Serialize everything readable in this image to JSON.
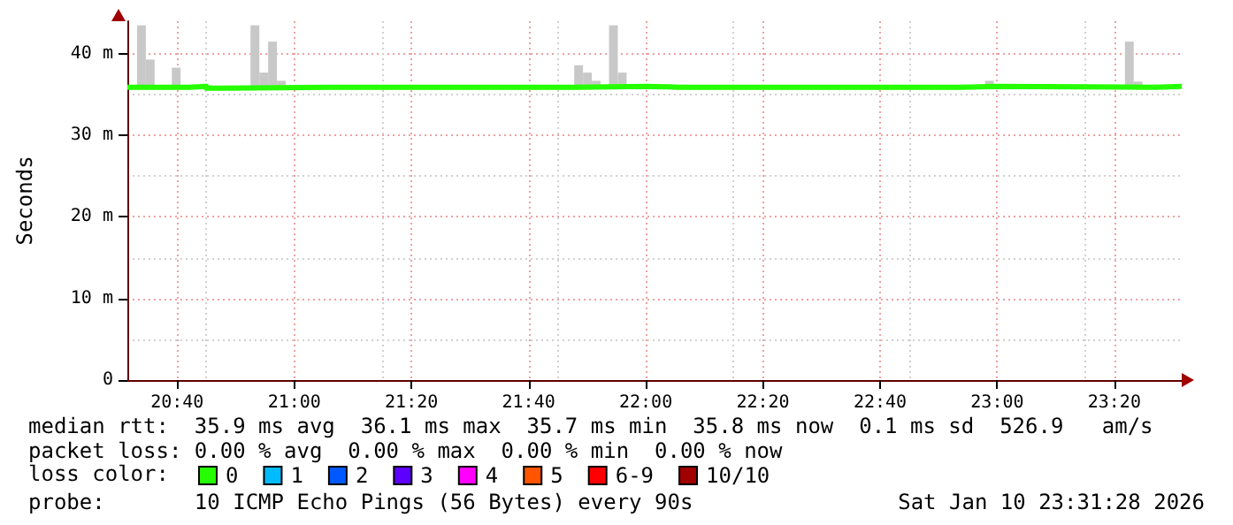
{
  "chart_data": {
    "type": "step",
    "ylabel": "Seconds",
    "legend_title": "loss color:",
    "legend": "bottom left",
    "grid": true,
    "marker": "none",
    "line_style": "solid",
    "xlim": [
      20.525,
      23.525
    ],
    "xticks": [
      {
        "value": 20.6667,
        "label": "20:40"
      },
      {
        "value": 21,
        "label": "21:00"
      },
      {
        "value": 21.3333,
        "label": "21:20"
      },
      {
        "value": 21.6667,
        "label": "21:40"
      },
      {
        "value": 22,
        "label": "22:00"
      },
      {
        "value": 22.3333,
        "label": "22:20"
      },
      {
        "value": 22.6667,
        "label": "22:40"
      },
      {
        "value": 23,
        "label": "23:00"
      },
      {
        "value": 23.3333,
        "label": "23:20"
      }
    ],
    "ylim": [
      0,
      44
    ],
    "yticks": [
      0,
      {
        "value": 10,
        "label": "10 m"
      },
      {
        "value": 20,
        "label": "20 m"
      },
      {
        "value": 30,
        "label": "30 m"
      },
      {
        "value": 40,
        "label": "40 m"
      }
    ],
    "series": [
      {
        "type": "bar",
        "color": "#c8c8c8",
        "x": [
          20.565,
          20.59,
          20.664,
          20.888,
          20.913,
          20.938,
          20.963,
          21.809,
          21.834,
          21.859,
          21.908,
          21.933,
          22.978,
          23.376,
          23.401
        ],
        "base": [
          35.9,
          35.9,
          35.9,
          35.9,
          35.9,
          35.9,
          35.9,
          35.9,
          35.9,
          35.9,
          35.9,
          35.9,
          35.9,
          35.9,
          35.9
        ],
        "values": [
          7.6,
          3.4,
          2.4,
          7.6,
          1.8,
          5.6,
          0.8,
          2.7,
          1.8,
          0.8,
          7.6,
          1.8,
          0.8,
          5.6,
          0.7
        ]
      },
      {
        "name": "0",
        "color": "#26ff00",
        "x": [
          20.525,
          20.7,
          20.75,
          20.8,
          21.1,
          21.2,
          21.7,
          21.8,
          22.0,
          22.1,
          22.9,
          23.0,
          23.45,
          23.525
        ],
        "values": [
          35.9,
          36.0,
          35.8,
          35.9,
          35.9,
          35.9,
          35.9,
          36.0,
          35.9,
          35.9,
          36.0,
          35.9,
          36.0,
          35.9
        ]
      },
      {
        "name": "1",
        "color": "#00bbff"
      },
      {
        "name": "2",
        "color": "#0059ff"
      },
      {
        "name": "3",
        "color": "#5e00ff"
      },
      {
        "name": "4",
        "color": "#ff00ff"
      },
      {
        "name": "5",
        "color": "#ff5500"
      },
      {
        "name": "6-9",
        "color": "#ff0000"
      },
      {
        "name": "10/10",
        "color": "#a10000"
      }
    ],
    "annotations": [
      "median rtt:  35.9 ms avg  36.1 ms max  35.7 ms min  35.8 ms now  0.1 ms sd  526.9   am/s",
      "packet loss: 0.00 % avg  0.00 % max  0.00 % min  0.00 % now",
      "probe:       10 ICMP Echo Pings (56 Bytes) every 90s",
      "Sat Jan 10 23:31:28 2026"
    ]
  }
}
